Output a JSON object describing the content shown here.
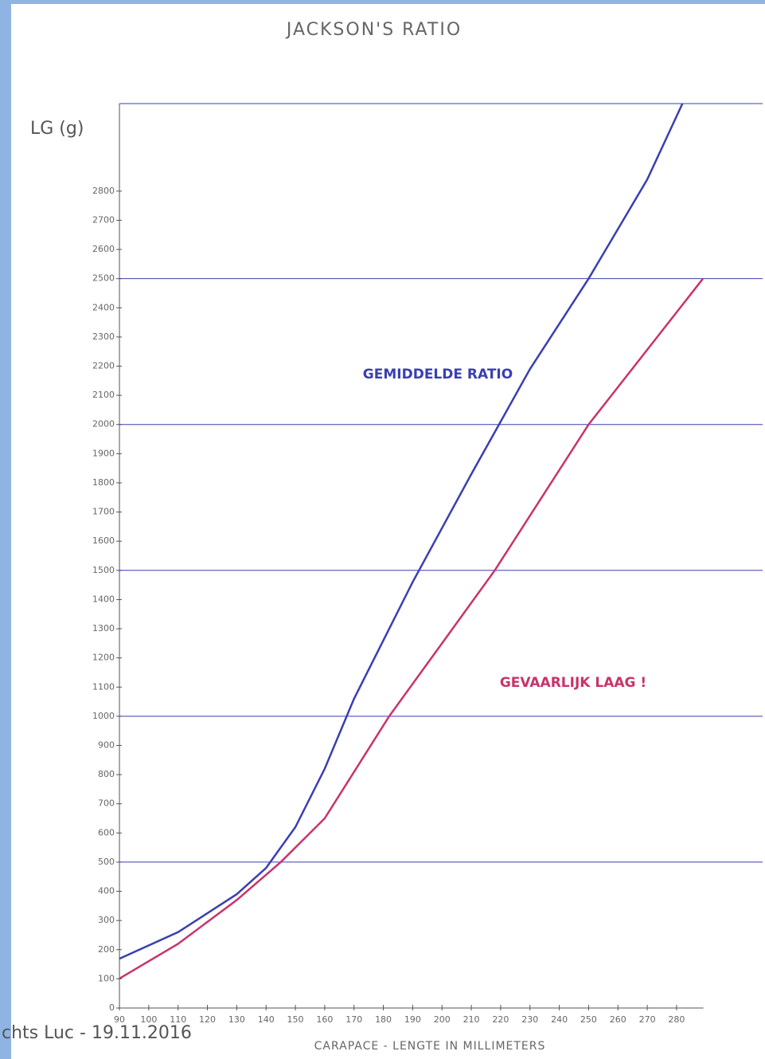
{
  "chart_data": {
    "type": "line",
    "title": "JACKSON'S RATIO",
    "y_label": "LG (g)",
    "x_label": "CARAPACE - LENGTE IN MILLIMETERS",
    "footer": "chts Luc - 19.11.2016",
    "xlim": [
      86,
      300
    ],
    "ylim": [
      0,
      3100
    ],
    "xticks": [
      90,
      100,
      110,
      120,
      130,
      140,
      150,
      160,
      170,
      180,
      190,
      200,
      210,
      220,
      230,
      240,
      250,
      260,
      270,
      280
    ],
    "yticks": [
      0,
      100,
      200,
      300,
      400,
      500,
      600,
      700,
      800,
      900,
      1000,
      1100,
      1200,
      1300,
      1400,
      1500,
      1600,
      1700,
      1800,
      1900,
      2000,
      2100,
      2200,
      2300,
      2400,
      2500,
      2600,
      2700,
      2800
    ],
    "grid_every": 500,
    "series": [
      {
        "name": "GEMIDDELDE RATIO",
        "color": "#3a3fb0",
        "x": [
          90,
          110,
          130,
          140,
          150,
          160,
          170,
          190,
          210,
          230,
          250,
          270,
          282
        ],
        "values": [
          169,
          260,
          390,
          480,
          620,
          820,
          1060,
          1460,
          1830,
          2190,
          2500,
          2840,
          3100
        ]
      },
      {
        "name": "GEVAARLIJK LAAG !",
        "color": "#c8336a",
        "x": [
          90,
          110,
          130,
          145,
          160,
          182,
          200,
          218,
          250,
          289
        ],
        "values": [
          101,
          220,
          370,
          500,
          650,
          1000,
          1250,
          1500,
          2000,
          2500
        ]
      }
    ]
  }
}
